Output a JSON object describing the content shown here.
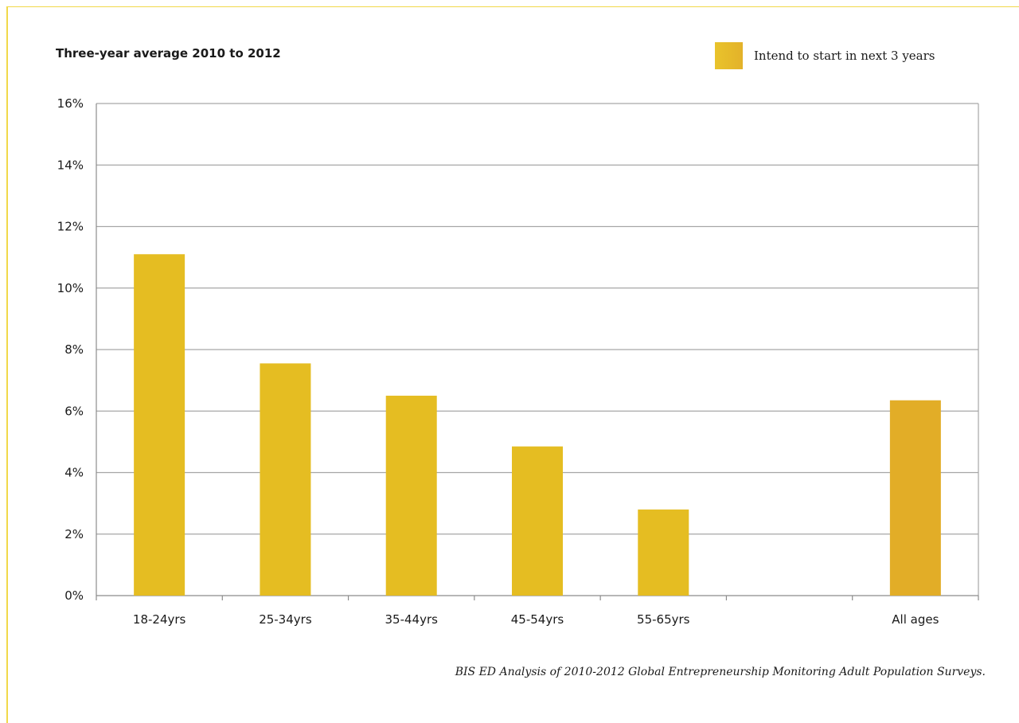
{
  "chart_data": {
    "type": "bar",
    "title": "Three-year average 2010 to 2012",
    "categories": [
      "18-24yrs",
      "25-34yrs",
      "35-44yrs",
      "45-54yrs",
      "55-65yrs",
      "",
      "All ages"
    ],
    "series": [
      {
        "name": "Intend to start in next 3 years",
        "values": [
          11.1,
          7.55,
          6.5,
          4.85,
          2.8,
          null,
          6.35
        ]
      }
    ],
    "ylim": [
      0,
      16
    ],
    "yticks": [
      0,
      2,
      4,
      6,
      8,
      10,
      12,
      14,
      16
    ],
    "ytick_labels": [
      "0%",
      "2%",
      "4%",
      "6%",
      "8%",
      "10%",
      "12%",
      "14%",
      "16%"
    ],
    "grid": true,
    "legend_position": "top-right",
    "bar_color": "#e5bd22",
    "highlight_color": "#e2ad27"
  },
  "source_note": "BIS ED Analysis of 2010-2012 Global Entrepreneurship Monitoring Adult Population Surveys."
}
